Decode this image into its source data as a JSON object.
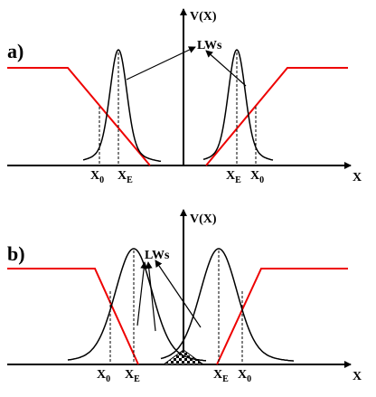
{
  "panels": [
    {
      "label": "a)",
      "y_axis": "V(X)",
      "x_axis": "X",
      "annotation": "LWs",
      "ticks": [
        {
          "base": "X",
          "sub": "0"
        },
        {
          "base": "X",
          "sub": "E"
        },
        {
          "base": "X",
          "sub": "E"
        },
        {
          "base": "X",
          "sub": "0"
        }
      ]
    },
    {
      "label": "b)",
      "y_axis": "V(X)",
      "x_axis": "X",
      "annotation": "LWs",
      "ticks": [
        {
          "base": "X",
          "sub": "0"
        },
        {
          "base": "X",
          "sub": "E"
        },
        {
          "base": "X",
          "sub": "E"
        },
        {
          "base": "X",
          "sub": "0"
        }
      ]
    }
  ]
}
